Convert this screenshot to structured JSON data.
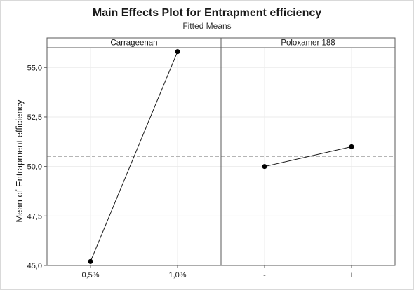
{
  "chart_data": {
    "type": "line",
    "title": "Main Effects Plot for Entrapment efficiency",
    "subtitle": "Fitted Means",
    "ylabel": "Mean of Entrapment efficiency",
    "ylim": [
      45.0,
      56.0
    ],
    "yticks": [
      "45,0",
      "47,5",
      "50,0",
      "52,5",
      "55,0"
    ],
    "ytick_values": [
      45.0,
      47.5,
      50.0,
      52.5,
      55.0
    ],
    "reference_line": 50.5,
    "grid": true,
    "panels": [
      {
        "name": "Carrageenan",
        "categories": [
          "0,5%",
          "1,0%"
        ],
        "values": [
          45.2,
          55.8
        ]
      },
      {
        "name": "Poloxamer 188",
        "categories": [
          "-",
          "+"
        ],
        "values": [
          50.0,
          51.0
        ]
      }
    ]
  }
}
